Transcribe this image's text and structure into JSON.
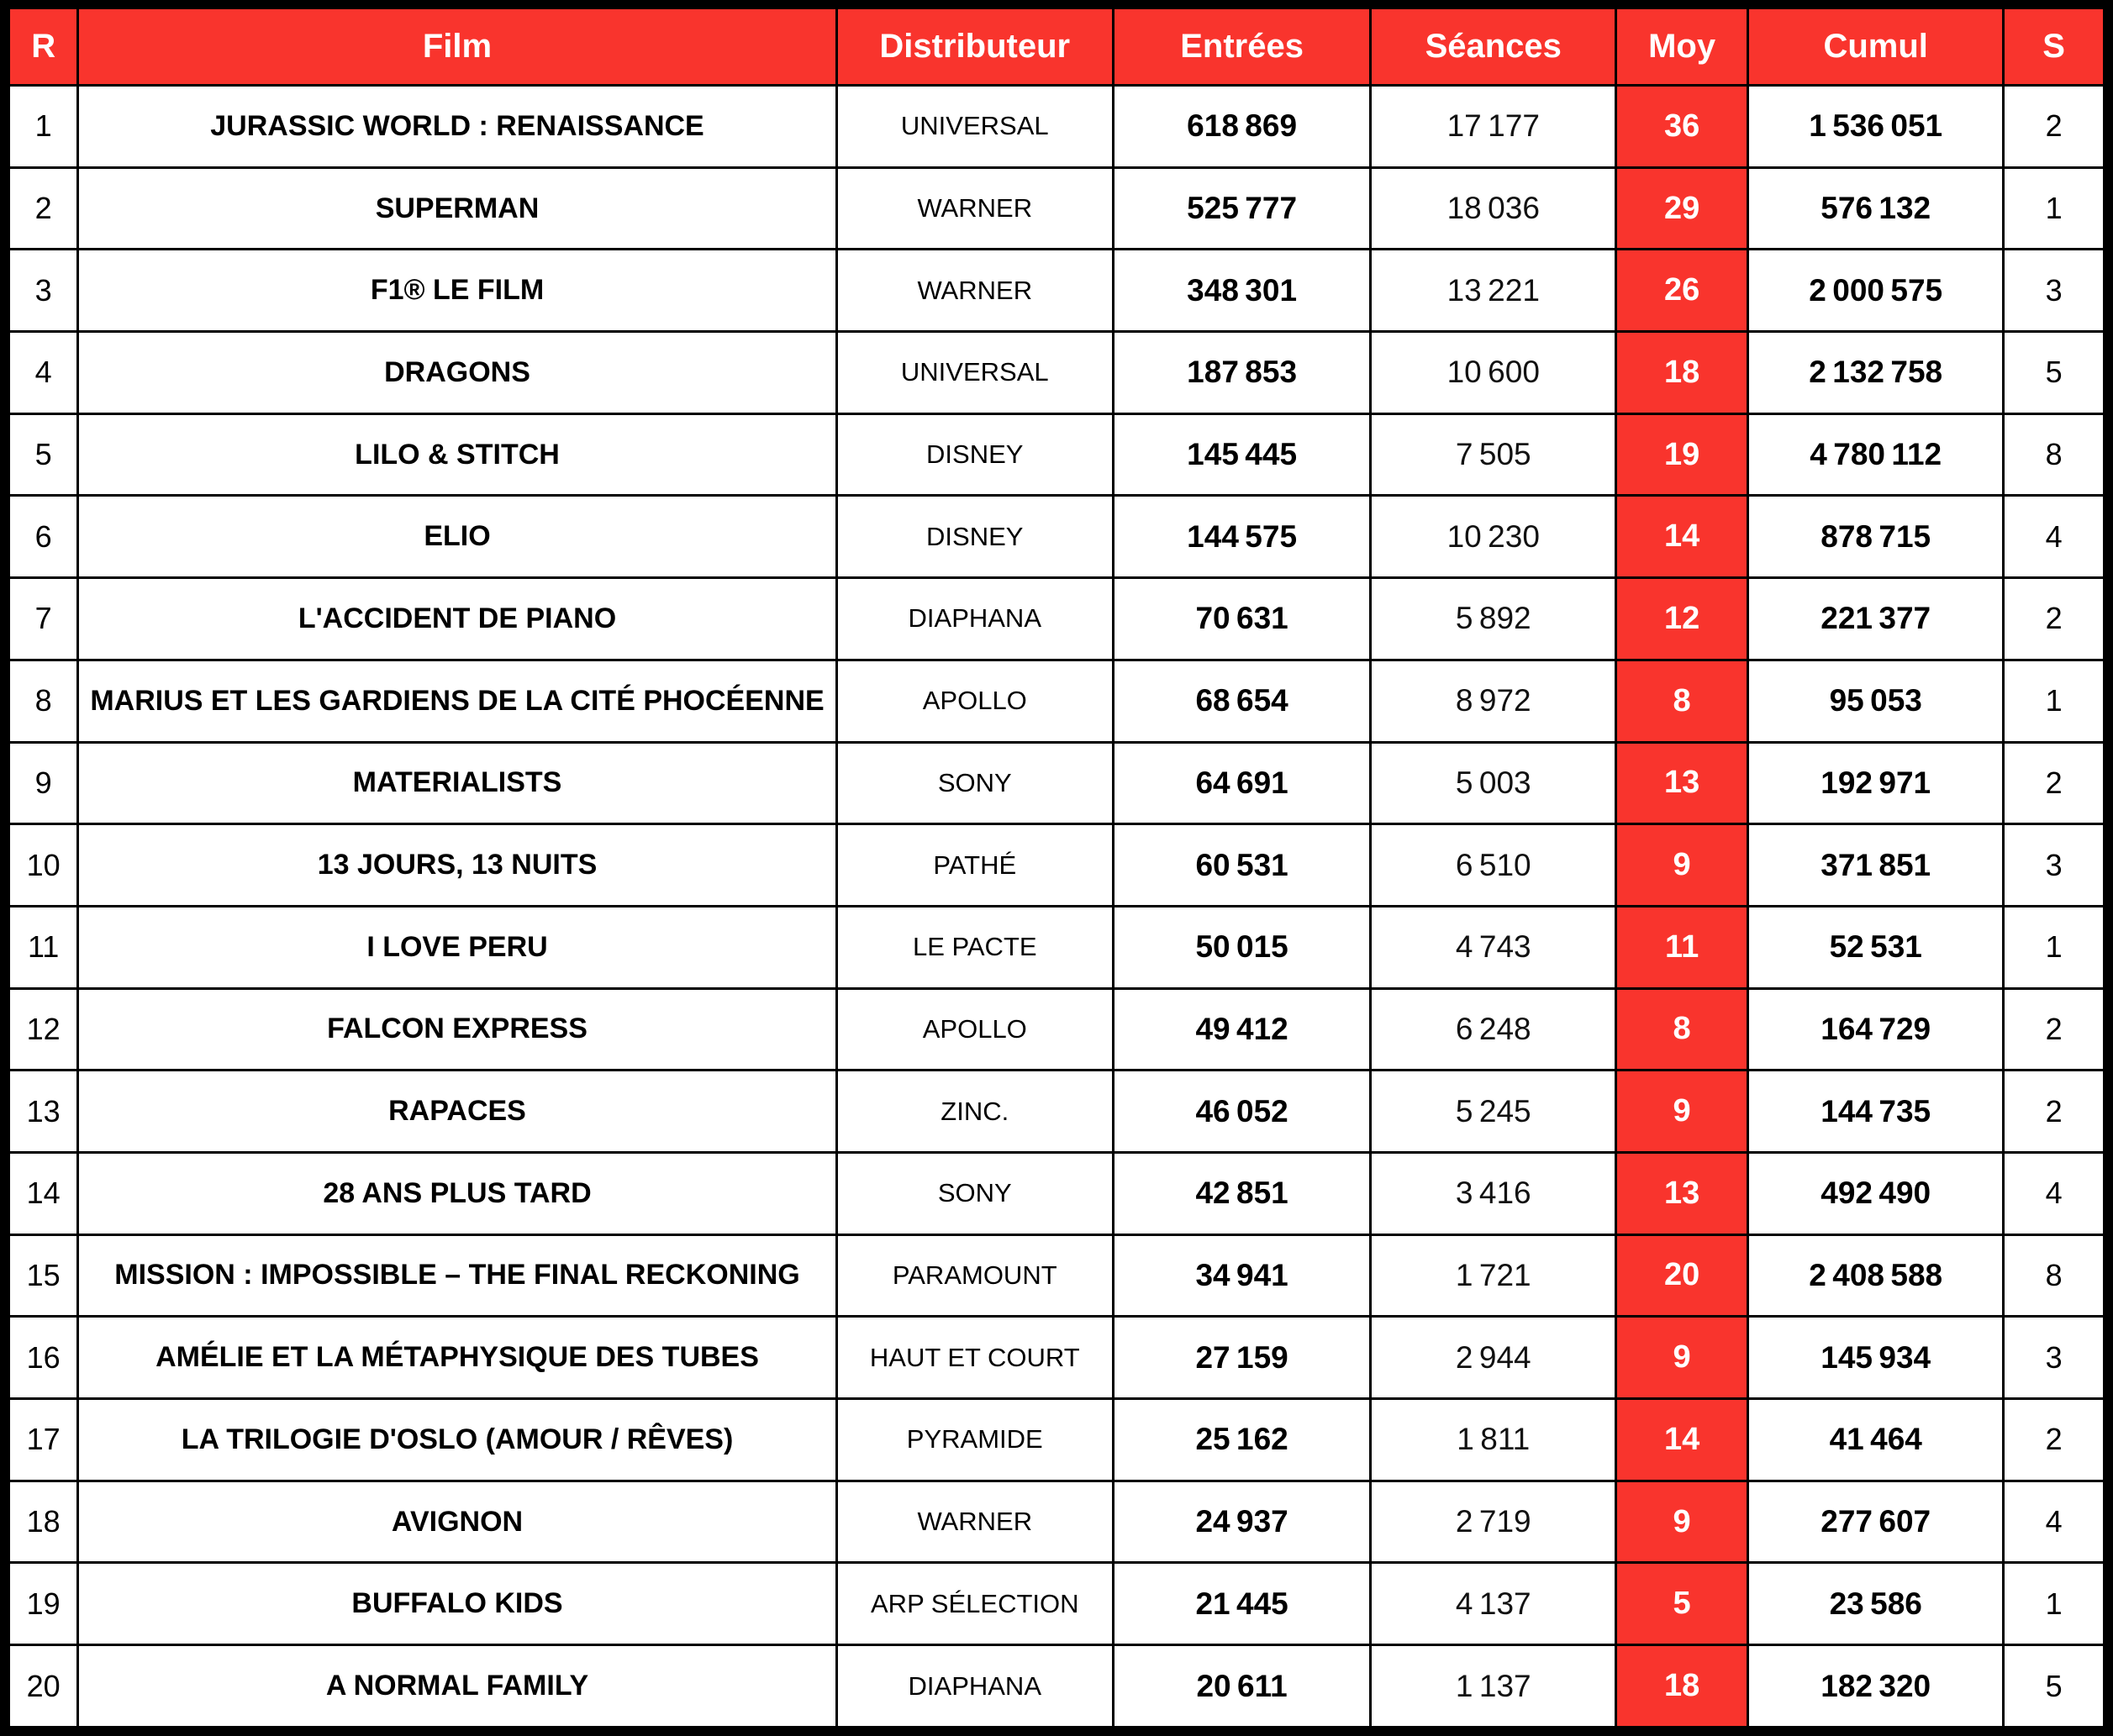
{
  "styles": {
    "accent_red": "#F9342D",
    "grid_black": "#000000",
    "cell_white": "#FFFFFF",
    "header_text_white": "#FFFFFF"
  },
  "chart_data": {
    "type": "table",
    "columns": [
      "R",
      "Film",
      "Distributeur",
      "Entrées",
      "Séances",
      "Moy",
      "Cumul",
      "S"
    ],
    "rows": [
      [
        "1",
        "JURASSIC WORLD : RENAISSANCE",
        "UNIVERSAL",
        "618 869",
        "17 177",
        "36",
        "1 536 051",
        "2"
      ],
      [
        "2",
        "SUPERMAN",
        "WARNER",
        "525 777",
        "18 036",
        "29",
        "576 132",
        "1"
      ],
      [
        "3",
        "F1® LE FILM",
        "WARNER",
        "348 301",
        "13 221",
        "26",
        "2 000 575",
        "3"
      ],
      [
        "4",
        "DRAGONS",
        "UNIVERSAL",
        "187 853",
        "10 600",
        "18",
        "2 132 758",
        "5"
      ],
      [
        "5",
        "LILO & STITCH",
        "DISNEY",
        "145 445",
        "7 505",
        "19",
        "4 780 112",
        "8"
      ],
      [
        "6",
        "ELIO",
        "DISNEY",
        "144 575",
        "10 230",
        "14",
        "878 715",
        "4"
      ],
      [
        "7",
        "L'ACCIDENT DE PIANO",
        "DIAPHANA",
        "70 631",
        "5 892",
        "12",
        "221 377",
        "2"
      ],
      [
        "8",
        "MARIUS ET LES GARDIENS DE LA CITÉ PHOCÉENNE",
        "APOLLO",
        "68 654",
        "8 972",
        "8",
        "95 053",
        "1"
      ],
      [
        "9",
        "MATERIALISTS",
        "SONY",
        "64 691",
        "5 003",
        "13",
        "192 971",
        "2"
      ],
      [
        "10",
        "13 JOURS, 13 NUITS",
        "PATHÉ",
        "60 531",
        "6 510",
        "9",
        "371 851",
        "3"
      ],
      [
        "11",
        "I LOVE PERU",
        "LE PACTE",
        "50 015",
        "4 743",
        "11",
        "52 531",
        "1"
      ],
      [
        "12",
        "FALCON EXPRESS",
        "APOLLO",
        "49 412",
        "6 248",
        "8",
        "164 729",
        "2"
      ],
      [
        "13",
        "RAPACES",
        "ZINC.",
        "46 052",
        "5 245",
        "9",
        "144 735",
        "2"
      ],
      [
        "14",
        "28 ANS PLUS TARD",
        "SONY",
        "42 851",
        "3 416",
        "13",
        "492 490",
        "4"
      ],
      [
        "15",
        "MISSION : IMPOSSIBLE – THE FINAL RECKONING",
        "PARAMOUNT",
        "34 941",
        "1 721",
        "20",
        "2 408 588",
        "8"
      ],
      [
        "16",
        "AMÉLIE ET LA MÉTAPHYSIQUE DES TUBES",
        "HAUT ET COURT",
        "27 159",
        "2 944",
        "9",
        "145 934",
        "3"
      ],
      [
        "17",
        "LA TRILOGIE D'OSLO (AMOUR / RÊVES)",
        "PYRAMIDE",
        "25 162",
        "1 811",
        "14",
        "41 464",
        "2"
      ],
      [
        "18",
        "AVIGNON",
        "WARNER",
        "24 937",
        "2 719",
        "9",
        "277 607",
        "4"
      ],
      [
        "19",
        "BUFFALO KIDS",
        "ARP SÉLECTION",
        "21 445",
        "4 137",
        "5",
        "23 586",
        "1"
      ],
      [
        "20",
        "A NORMAL FAMILY",
        "DIAPHANA",
        "20 611",
        "1 137",
        "18",
        "182 320",
        "5"
      ]
    ]
  }
}
